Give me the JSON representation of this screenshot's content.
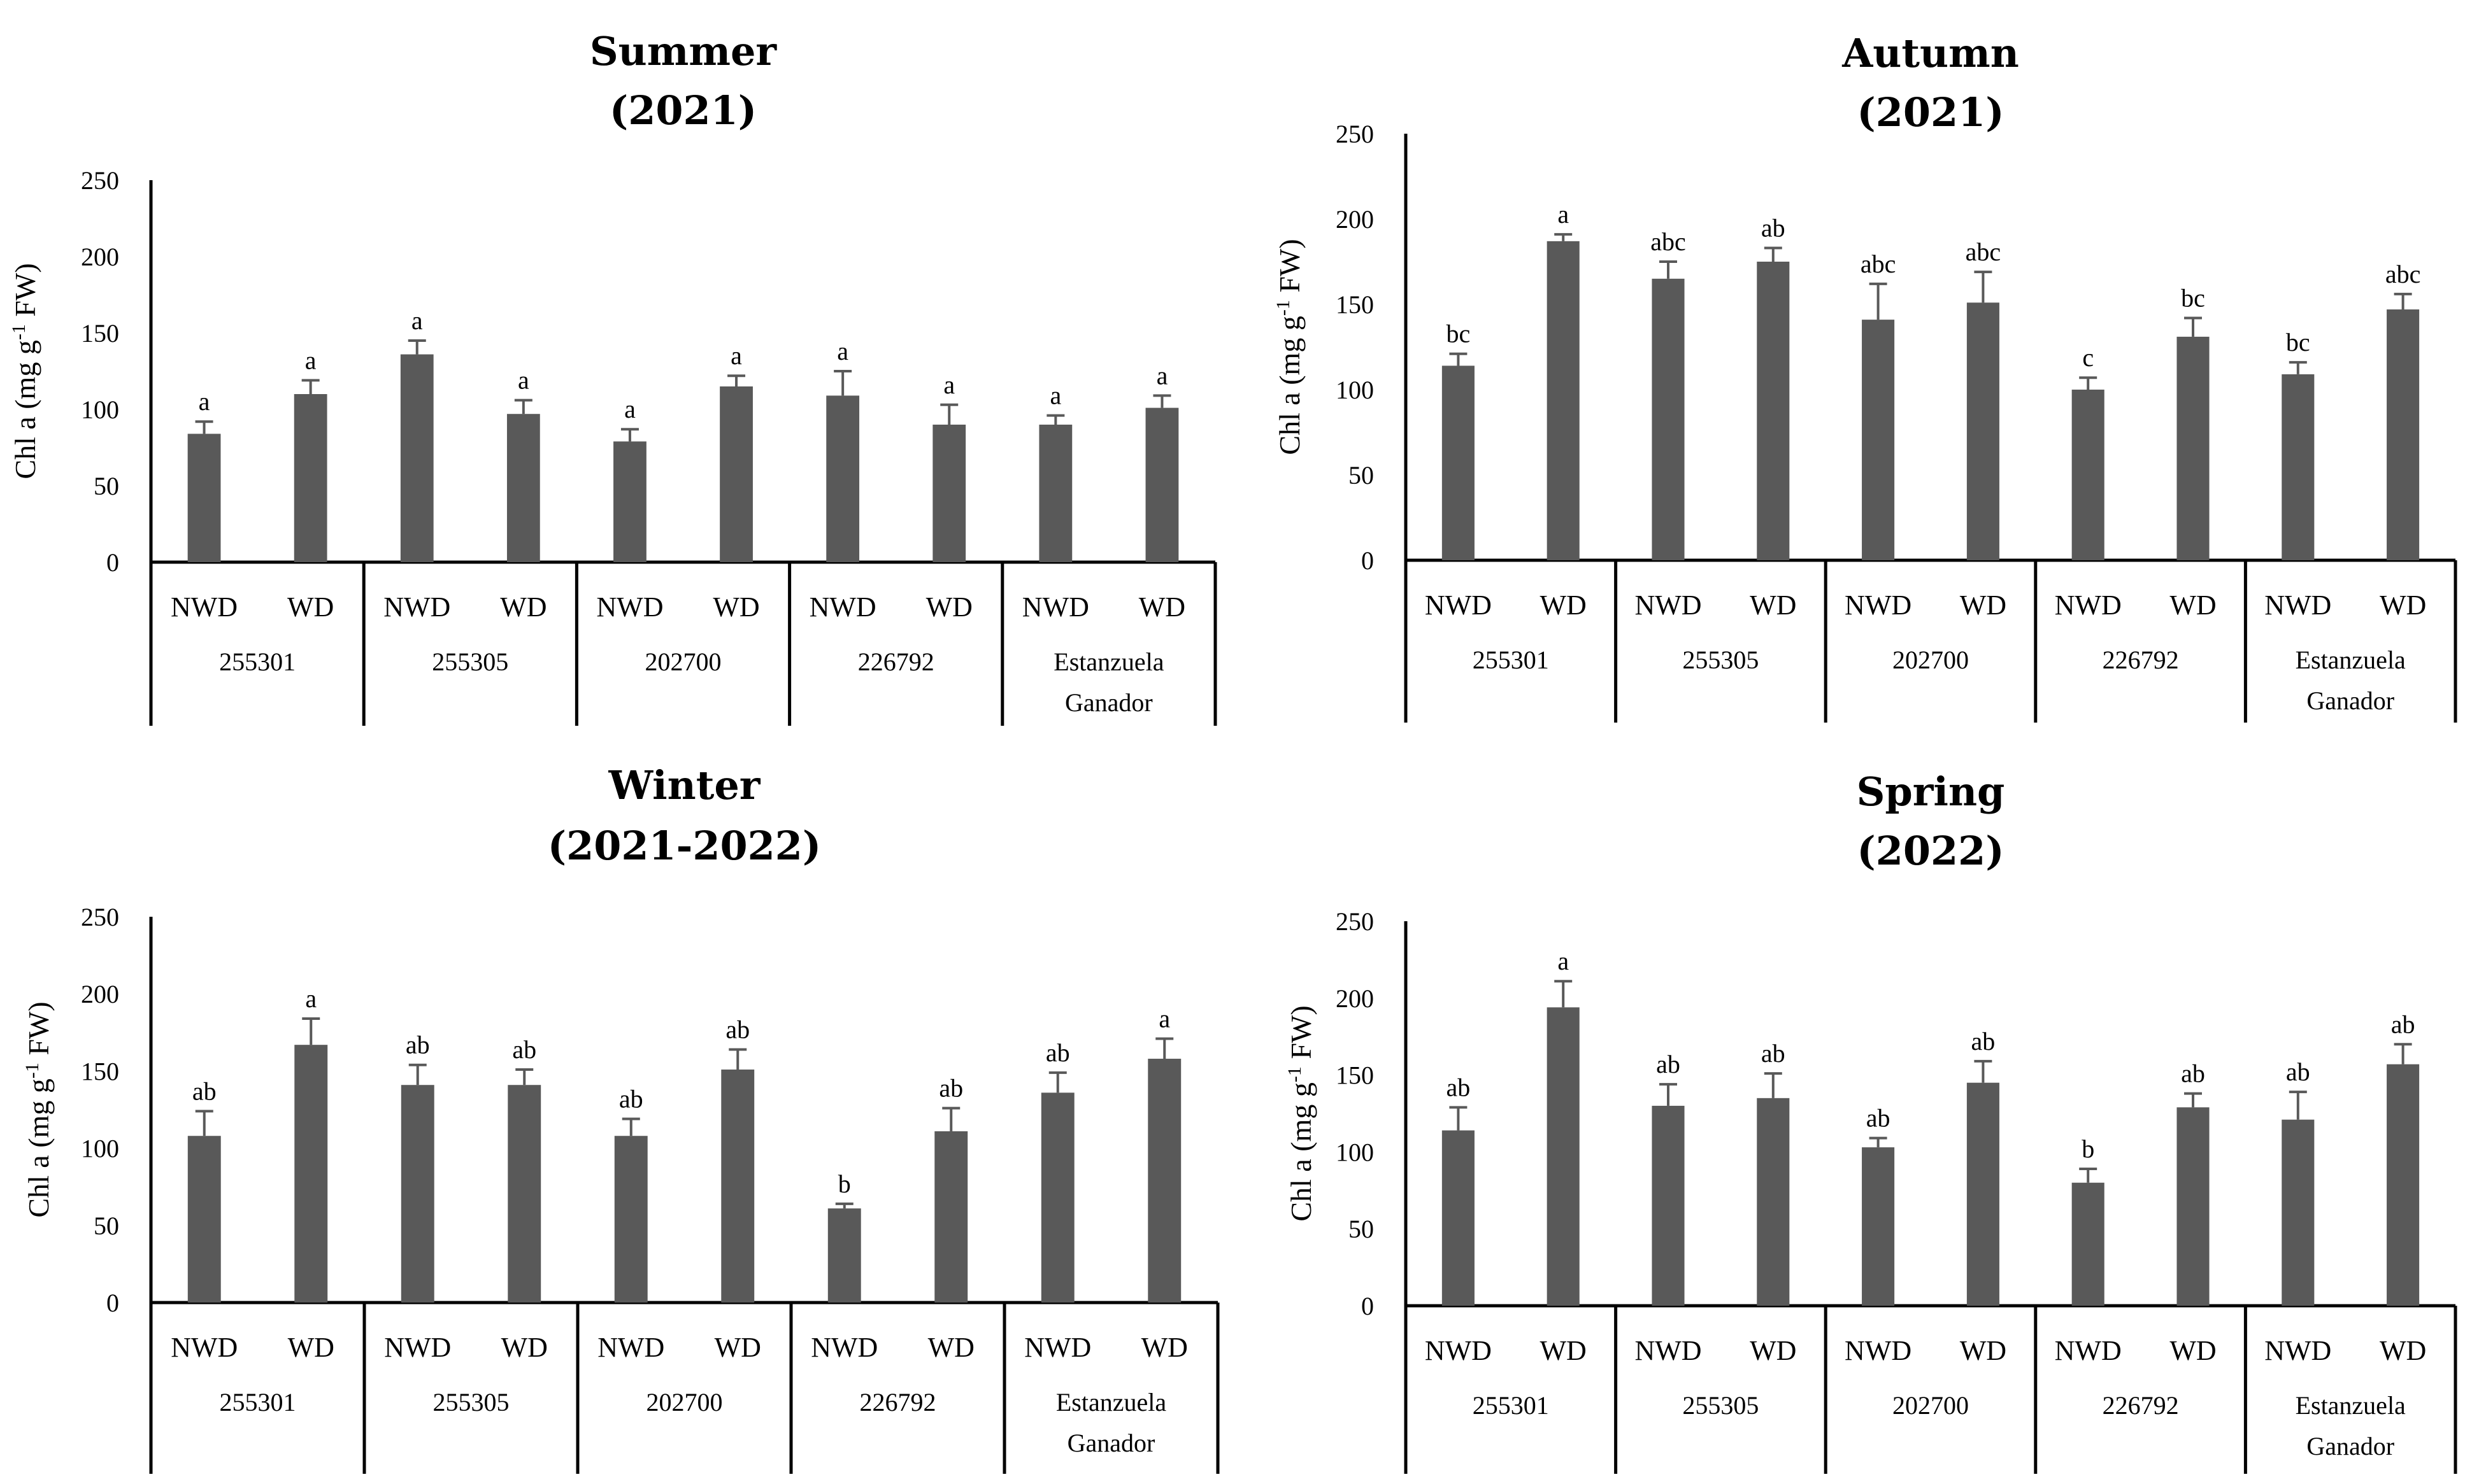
{
  "chart_data": [
    {
      "type": "bar",
      "title": "Summer",
      "subtitle": "(2021)",
      "ylabel": "Chl a (mg g-1 FW)",
      "ylabel_parts": {
        "main": "Chl a (mg g",
        "sup": "-1",
        "end": " FW)"
      },
      "ylim": [
        0,
        250
      ],
      "yticks": [
        "0",
        "50",
        "100",
        "150",
        "200",
        "250"
      ],
      "groups": [
        "255301",
        "255305",
        "202700",
        "226792",
        "Estanzuela Ganador"
      ],
      "group_lines": [
        [
          "255301"
        ],
        [
          "255305"
        ],
        [
          "202700"
        ],
        [
          "226792"
        ],
        [
          "Estanzuela",
          "Ganador"
        ]
      ],
      "categories": [
        "NWD",
        "WD"
      ],
      "values": [
        [
          84,
          110
        ],
        [
          136,
          97
        ],
        [
          79,
          115
        ],
        [
          109,
          90
        ],
        [
          90,
          101
        ]
      ],
      "errors": [
        [
          8,
          9
        ],
        [
          9,
          9
        ],
        [
          8,
          7
        ],
        [
          16,
          13
        ],
        [
          6,
          8
        ]
      ],
      "letters": [
        [
          "a",
          "a"
        ],
        [
          "a",
          "a"
        ],
        [
          "a",
          "a"
        ],
        [
          "a",
          "a"
        ],
        [
          "a",
          "a"
        ]
      ]
    },
    {
      "type": "bar",
      "title": "Autumn",
      "subtitle": "(2021)",
      "ylabel": "Chl a (mg g-1 FW)",
      "ylabel_parts": {
        "main": "Chl a (mg g",
        "sup": "-1",
        "end": " FW)"
      },
      "ylim": [
        0,
        250
      ],
      "yticks": [
        "0",
        "50",
        "100",
        "150",
        "200",
        "250"
      ],
      "groups": [
        "255301",
        "255305",
        "202700",
        "226792",
        "Estanzuela Ganador"
      ],
      "group_lines": [
        [
          "255301"
        ],
        [
          "255305"
        ],
        [
          "202700"
        ],
        [
          "226792"
        ],
        [
          "Estanzuela",
          "Ganador"
        ]
      ],
      "categories": [
        "NWD",
        "WD"
      ],
      "values": [
        [
          114,
          187
        ],
        [
          165,
          175
        ],
        [
          141,
          151
        ],
        [
          100,
          131
        ],
        [
          109,
          147
        ]
      ],
      "errors": [
        [
          7,
          4
        ],
        [
          10,
          8
        ],
        [
          21,
          18
        ],
        [
          7,
          11
        ],
        [
          7,
          9
        ]
      ],
      "letters": [
        [
          "bc",
          "a"
        ],
        [
          "abc",
          "ab"
        ],
        [
          "abc",
          "abc"
        ],
        [
          "c",
          "bc"
        ],
        [
          "bc",
          "abc"
        ]
      ]
    },
    {
      "type": "bar",
      "title": "Winter",
      "subtitle": "(2021-2022)",
      "ylabel": "Chl a (mg g-1 FW)",
      "ylabel_parts": {
        "main": "Chl a (mg g",
        "sup": "-1",
        "end": " FW)"
      },
      "ylim": [
        0,
        250
      ],
      "yticks": [
        "0",
        "50",
        "100",
        "150",
        "200",
        "250"
      ],
      "groups": [
        "255301",
        "255305",
        "202700",
        "226792",
        "Estanzuela Ganador"
      ],
      "group_lines": [
        [
          "255301"
        ],
        [
          "255305"
        ],
        [
          "202700"
        ],
        [
          "226792"
        ],
        [
          "Estanzuela",
          "Ganador"
        ]
      ],
      "categories": [
        "NWD",
        "WD"
      ],
      "values": [
        [
          108,
          167
        ],
        [
          141,
          141
        ],
        [
          108,
          151
        ],
        [
          61,
          111
        ],
        [
          136,
          158
        ]
      ],
      "errors": [
        [
          16,
          17
        ],
        [
          13,
          10
        ],
        [
          11,
          13
        ],
        [
          3,
          15
        ],
        [
          13,
          13
        ]
      ],
      "letters": [
        [
          "ab",
          "a"
        ],
        [
          "ab",
          "ab"
        ],
        [
          "ab",
          "ab"
        ],
        [
          "b",
          "ab"
        ],
        [
          "ab",
          "a"
        ]
      ]
    },
    {
      "type": "bar",
      "title": "Spring",
      "subtitle": "(2022)",
      "ylabel": "Chl a (mg g-1 FW)",
      "ylabel_parts": {
        "main": "Chl a (mg g",
        "sup": "-1",
        "end": " FW)"
      },
      "ylim": [
        0,
        250
      ],
      "yticks": [
        "0",
        "50",
        "100",
        "150",
        "200",
        "250"
      ],
      "groups": [
        "255301",
        "255305",
        "202700",
        "226792",
        "Estanzuela Ganador"
      ],
      "group_lines": [
        [
          "255301"
        ],
        [
          "255305"
        ],
        [
          "202700"
        ],
        [
          "226792"
        ],
        [
          "Estanzuela",
          "Ganador"
        ]
      ],
      "categories": [
        "NWD",
        "WD"
      ],
      "values": [
        [
          114,
          194
        ],
        [
          130,
          135
        ],
        [
          103,
          145
        ],
        [
          80,
          129
        ],
        [
          121,
          157
        ]
      ],
      "errors": [
        [
          15,
          17
        ],
        [
          14,
          16
        ],
        [
          6,
          14
        ],
        [
          9,
          9
        ],
        [
          18,
          13
        ]
      ],
      "letters": [
        [
          "ab",
          "a"
        ],
        [
          "ab",
          "ab"
        ],
        [
          "ab",
          "ab"
        ],
        [
          "b",
          "ab"
        ],
        [
          "ab",
          "ab"
        ]
      ]
    }
  ]
}
